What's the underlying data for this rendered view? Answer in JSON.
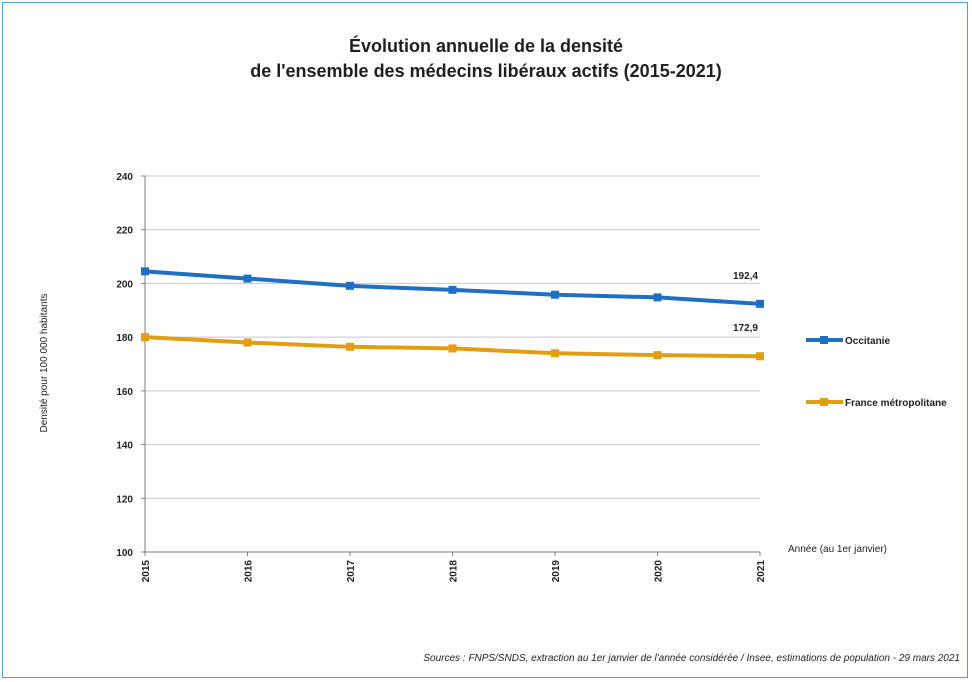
{
  "chart_data": {
    "type": "line",
    "title": "Évolution annuelle de la densité",
    "subtitle": "de l'ensemble des médecins libéraux actifs (2015-2021)",
    "xlabel": "Année (au 1er janvier)",
    "ylabel": "Densité pour 100 000 habitants",
    "x": [
      "2015",
      "2016",
      "2017",
      "2018",
      "2019",
      "2020",
      "2021"
    ],
    "ylim": [
      100,
      240
    ],
    "yticks": [
      "100",
      "120",
      "140",
      "160",
      "180",
      "200",
      "220",
      "240"
    ],
    "grid": true,
    "legend_position": "right",
    "series": [
      {
        "name": "Occitanie",
        "color": "#1f6fc5",
        "values": [
          204.5,
          201.8,
          199.1,
          197.6,
          195.8,
          194.8,
          192.4
        ],
        "end_label": "192,4"
      },
      {
        "name": "France métropolitane",
        "color": "#e29e10",
        "values": [
          180.0,
          178.0,
          176.4,
          175.8,
          174.0,
          173.3,
          172.9
        ],
        "end_label": "172,9"
      }
    ],
    "source": "Sources : FNPS/SNDS, extraction au 1er janvier de l'année considérée / Insee, estimations de population - 29 mars 2021"
  }
}
